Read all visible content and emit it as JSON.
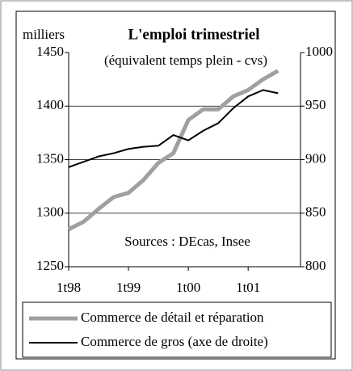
{
  "chart_data": {
    "type": "line",
    "title": "L'emploi trimestriel",
    "subtitle": "(équivalent temps plein - cvs)",
    "y_label": "milliers",
    "annotation": "Sources : DEcas, Insee",
    "categories": [
      "1t98",
      null,
      null,
      null,
      "1t99",
      null,
      null,
      null,
      "1t00",
      null,
      null,
      null,
      "1t01",
      null,
      null
    ],
    "series": [
      {
        "name": "Commerce de détail et réparation",
        "color": "#a0a0a0",
        "values": [
          1285,
          1292,
          1304,
          1315,
          1319,
          1331,
          1347,
          1356,
          1387,
          1397,
          1397,
          1409,
          1415,
          1425,
          1433
        ]
      },
      {
        "name": "Commerce de gros (axe de droite)",
        "color": "#000000",
        "axis": "y2",
        "values": [
          893,
          898,
          903,
          906,
          910,
          912,
          913,
          923,
          918,
          927,
          934,
          948,
          959,
          965,
          962
        ]
      }
    ],
    "ylim": [
      1250,
      1450
    ],
    "yticks": [
      1250,
      1300,
      1350,
      1400,
      1450
    ],
    "y2lim": [
      800,
      1000
    ],
    "y2ticks": [
      800,
      850,
      900,
      950,
      1000
    ],
    "grid": true
  }
}
